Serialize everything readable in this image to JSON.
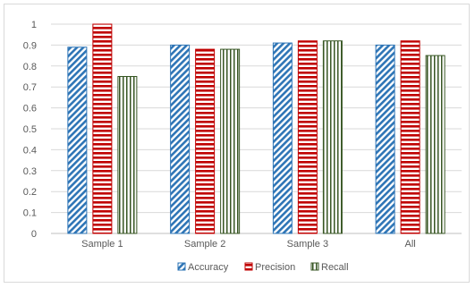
{
  "chart_data": {
    "type": "bar",
    "categories": [
      "Sample 1",
      "Sample 2",
      "Sample 3",
      "All"
    ],
    "series": [
      {
        "name": "Accuracy",
        "values": [
          0.89,
          0.9,
          0.91,
          0.9
        ],
        "color": "#2e75b6",
        "pattern": "diagonal-hatch"
      },
      {
        "name": "Precision",
        "values": [
          1.0,
          0.88,
          0.92,
          0.92
        ],
        "color": "#c00000",
        "pattern": "horizontal-stripes"
      },
      {
        "name": "Recall",
        "values": [
          0.75,
          0.88,
          0.92,
          0.85
        ],
        "color": "#375623",
        "pattern": "vertical-stripes"
      }
    ],
    "title": "",
    "xlabel": "",
    "ylabel": "",
    "ylim": [
      0,
      1
    ],
    "yticks": [
      "0",
      "0.1",
      "0.2",
      "0.3",
      "0.4",
      "0.5",
      "0.6",
      "0.7",
      "0.8",
      "0.9",
      "1"
    ],
    "grid": true,
    "legend": "bottom"
  }
}
